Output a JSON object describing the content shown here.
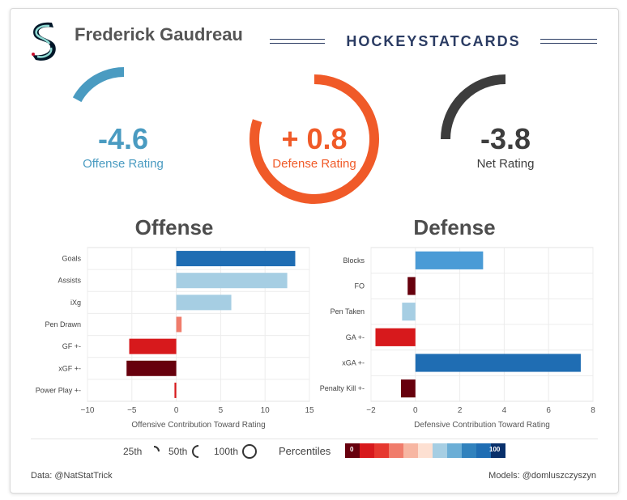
{
  "header": {
    "player_name": "Frederick Gaudreau",
    "brand": "HOCKEYSTATCARDS",
    "logo_icon": "kraken-s-logo-icon"
  },
  "ratings": {
    "offense": {
      "value": "-4.6",
      "label": "Offense Rating",
      "color": "#4a9bc1",
      "arc_fraction": 0.17
    },
    "defense": {
      "value": "+ 0.8",
      "label": "Defense Rating",
      "color": "#f05a28",
      "arc_fraction": 0.8
    },
    "net": {
      "value": "-3.8",
      "label": "Net Rating",
      "color": "#3d3d3d",
      "arc_fraction": 0.25
    }
  },
  "sections": {
    "offense_title": "Offense",
    "defense_title": "Defense"
  },
  "chart_data": [
    {
      "type": "bar",
      "orientation": "horizontal",
      "title": "Offense",
      "xlabel": "Offensive Contribution Toward Rating",
      "xlim": [
        -10,
        15
      ],
      "xticks": [
        -10,
        -5,
        0,
        5,
        10,
        15
      ],
      "tick_labels": [
        "−10",
        "−5",
        "0",
        "5",
        "10",
        "15"
      ],
      "categories": [
        "Goals",
        "Assists",
        "iXg",
        "Pen Drawn",
        "GF +-",
        "xGF +-",
        "Power Play +-"
      ],
      "values": [
        13.4,
        12.5,
        6.2,
        0.6,
        -5.3,
        -5.6,
        -0.2
      ],
      "colors": [
        "#1f6db3",
        "#a6cee3",
        "#a6cee3",
        "#f07c6b",
        "#d7191c",
        "#67000d",
        "#d7191c"
      ]
    },
    {
      "type": "bar",
      "orientation": "horizontal",
      "title": "Defense",
      "xlabel": "Defensive Contribution Toward Rating",
      "xlim": [
        -2,
        8
      ],
      "xticks": [
        -2,
        0,
        2,
        4,
        6,
        8
      ],
      "tick_labels": [
        "−2",
        "0",
        "2",
        "4",
        "6",
        "8"
      ],
      "categories": [
        "Blocks",
        "FO",
        "Pen Taken",
        "GA +-",
        "xGA +-",
        "Penalty Kill +-"
      ],
      "values": [
        3.05,
        -0.35,
        -0.6,
        -1.8,
        7.45,
        -0.65
      ],
      "colors": [
        "#4a9bd6",
        "#67000d",
        "#a6cee3",
        "#d7191c",
        "#1f6db3",
        "#67000d"
      ]
    }
  ],
  "legend": {
    "p25": "25th",
    "p50": "50th",
    "p100": "100th",
    "percentiles_label": "Percentiles",
    "scale_min": "0",
    "scale_max": "100",
    "scale_colors": [
      "#67000d",
      "#d7191c",
      "#e6382f",
      "#f07c6b",
      "#f7b6a2",
      "#fde0d2",
      "#a6cee3",
      "#6baed6",
      "#3182bd",
      "#1f6db3",
      "#08306b"
    ]
  },
  "footer": {
    "data_credit": "Data: @NatStatTrick",
    "model_credit": "Models: @domluszczyszyn"
  }
}
